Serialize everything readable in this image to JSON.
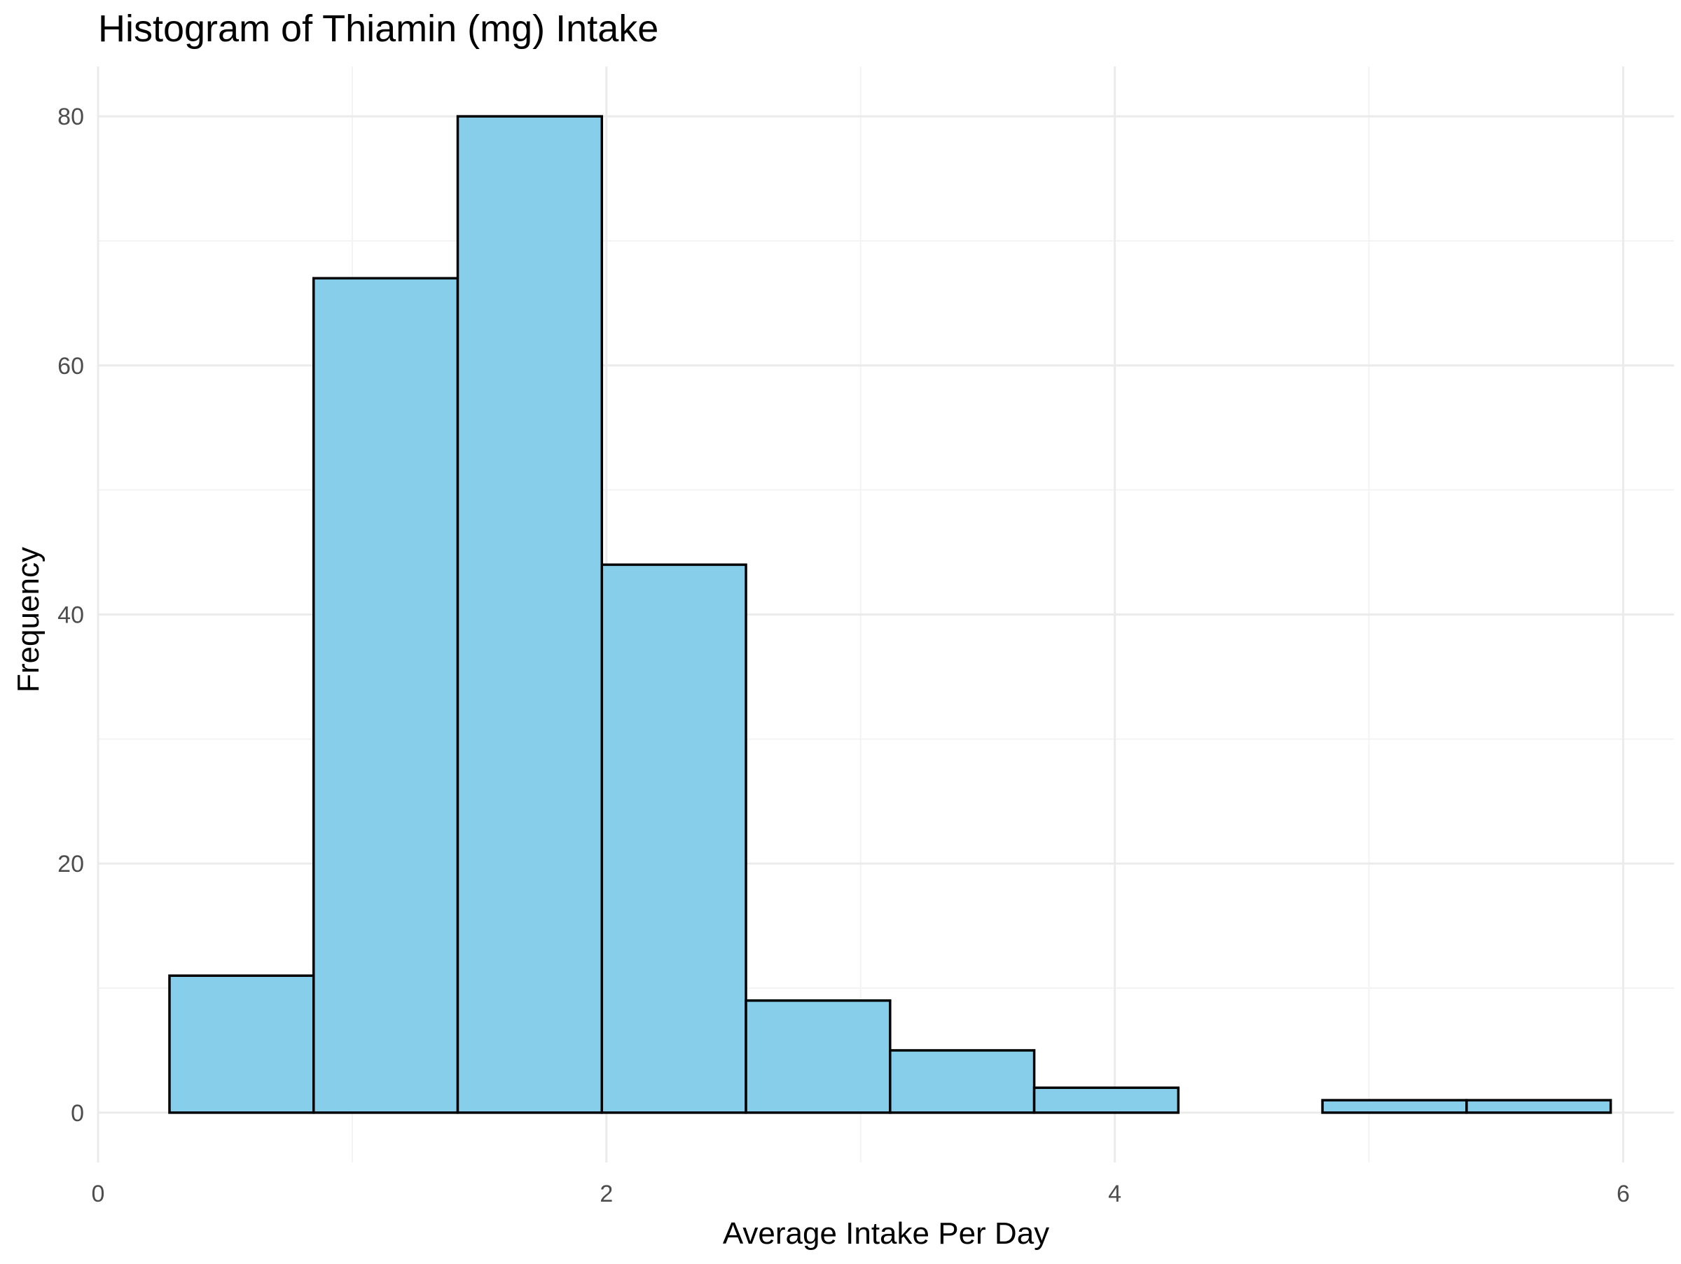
{
  "chart_data": {
    "type": "bar",
    "title": "Histogram of Thiamin (mg) Intake",
    "xlabel": "Average Intake Per Day",
    "ylabel": "Frequency",
    "bin_edges": [
      0.281,
      0.848,
      1.415,
      1.982,
      2.549,
      3.116,
      3.683,
      4.25,
      4.817,
      5.384,
      5.951
    ],
    "values": [
      11,
      67,
      80,
      44,
      9,
      5,
      2,
      0,
      1,
      1
    ],
    "xlim": [
      0,
      6.2
    ],
    "ylim": [
      -4,
      84
    ],
    "x_ticks": [
      0,
      2,
      4,
      6
    ],
    "y_ticks": [
      0,
      20,
      40,
      60,
      80
    ],
    "grid": true,
    "legend": "none",
    "colors": {
      "fill": "#87CEEB",
      "stroke": "#000000",
      "grid_major": "#EBEBEB",
      "grid_minor": "#F3F3F3",
      "tick_text": "#4D4D4D"
    }
  }
}
